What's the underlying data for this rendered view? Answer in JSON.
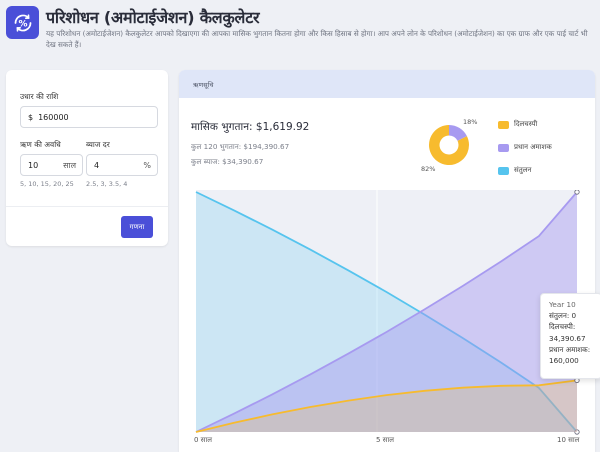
{
  "header": {
    "title": "परिशोधन (अमोटाईजेशन) कैलकुलेटर",
    "subtitle": "यह परिशोधन (अमोटाईजेशन) कैलकुलेटर आपको दिखाएगा की आपका मासिक भुगतान कितना होगा और किस हिसाब से होगा। आप अपने लोन के परिशोधन (अमोटाईजेशन) का एक ग्राफ और एक पाई चार्ट भी देख सकते हैं।",
    "logo_icon": "percent-refresh-icon"
  },
  "form": {
    "amount_label": "उधार की राशि",
    "amount_prefix": "$",
    "amount_value": "160000",
    "term_label": "ऋण की अवधि",
    "term_value": "10",
    "term_unit": "साल",
    "term_hint": "5, 10, 15, 20, 25",
    "rate_label": "ब्याज दर",
    "rate_value": "4",
    "rate_unit": "%",
    "rate_hint": "2.5, 3, 3.5, 4",
    "calculate_label": "गणना"
  },
  "results": {
    "header": "ऋणसूचि",
    "monthly_payment": "मासिक भुगतान: $1,619.92",
    "total_payments": "कुल 120 भुगतान: $194,390.67",
    "total_interest": "कुल ब्याज: $34,390.67"
  },
  "legend": [
    {
      "label": "दिलचस्पी",
      "color": "#f7bb2e"
    },
    {
      "label": "प्रधान अमाशक",
      "color": "#a79af0"
    },
    {
      "label": "संतुलन",
      "color": "#56c4ee"
    }
  ],
  "pie": {
    "interest_pct_label": "18%",
    "principal_pct_label": "82%"
  },
  "tooltip": {
    "year": "Year 10",
    "balance": "संतुलन: 0",
    "interest_label": "दिलचस्पी:",
    "interest_value": "34,390.67",
    "principal_label": "प्रधान अमाशक:",
    "principal_value": "160,000"
  },
  "chart_data": {
    "type": "area",
    "x": [
      0,
      1,
      2,
      3,
      4,
      5,
      6,
      7,
      8,
      9,
      10
    ],
    "x_tick_labels": [
      "0 साल",
      "5 साल",
      "10 साल"
    ],
    "x_tick_values": [
      0,
      5,
      10
    ],
    "ylim": [
      0,
      160000
    ],
    "series": [
      {
        "name": "संतुलन",
        "color": "#56c4ee",
        "values": [
          160000,
          147710,
          134920,
          121600,
          107740,
          93310,
          78290,
          62650,
          46370,
          29430,
          0
        ]
      },
      {
        "name": "प्रधान अमाशक",
        "color": "#a79af0",
        "values": [
          0,
          12290,
          25080,
          38400,
          52260,
          66690,
          81710,
          97350,
          113630,
          130570,
          160000
        ]
      },
      {
        "name": "दिलचस्पी",
        "color": "#f7bb2e",
        "values": [
          0,
          6150,
          11700,
          16640,
          20950,
          24570,
          27460,
          29560,
          30810,
          31140,
          34390
        ]
      }
    ],
    "grid": false,
    "legend_placement": "top-right"
  }
}
